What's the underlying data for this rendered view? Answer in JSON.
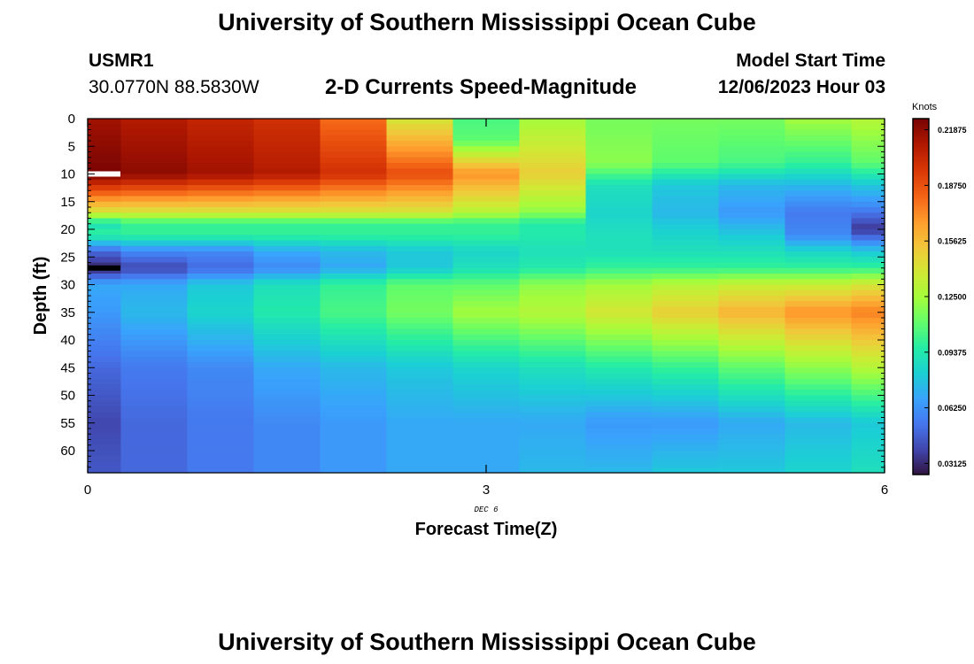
{
  "header": {
    "title": "University of Southern Mississippi Ocean Cube",
    "station": "USMR1",
    "coords": "30.0770N  88.5830W",
    "subtitle": "2-D Currents Speed-Magnitude",
    "model_label": "Model Start Time",
    "model_time": "12/06/2023 Hour 03"
  },
  "footer": {
    "title": "University of Southern Mississippi Ocean Cube"
  },
  "colors": {
    "palette": [
      "#30123b",
      "#4145ab",
      "#4675ed",
      "#39a2fc",
      "#1bcfd4",
      "#24eca6",
      "#61fc6c",
      "#a4fc3b",
      "#d1e834",
      "#f3c63a",
      "#fe9b2d",
      "#f36315",
      "#d93806",
      "#b11901",
      "#7a0403"
    ]
  },
  "chart_data": {
    "type": "heatmap",
    "title": "2-D Currents Speed-Magnitude",
    "xlabel": "Forecast Time(Z)",
    "ylabel": "Depth (ft)",
    "x_date_label": "DEC 6",
    "xlim": [
      0,
      6
    ],
    "ylim": [
      0,
      64
    ],
    "x_ticks": [
      0,
      3,
      6
    ],
    "y_ticks": [
      0,
      5,
      10,
      15,
      20,
      25,
      30,
      35,
      40,
      45,
      50,
      55,
      60
    ],
    "x": [
      0,
      0.5,
      1,
      1.5,
      2,
      2.5,
      3,
      3.5,
      4,
      4.5,
      5,
      5.5,
      6
    ],
    "colorbar": {
      "unit": "Knots",
      "min": 0.025,
      "max": 0.225,
      "tick_labels": [
        "0.21875",
        "0.18750",
        "0.15625",
        "0.12500",
        "0.09375",
        "0.06250",
        "0.03125"
      ]
    },
    "profiles": [
      {
        "depths": [
          0,
          10,
          17,
          19,
          21,
          24,
          27,
          30,
          35,
          45,
          55,
          64
        ],
        "values": [
          0.215,
          0.225,
          0.14,
          0.09,
          0.1,
          0.05,
          0.03,
          0.07,
          0.065,
          0.05,
          0.04,
          0.045
        ]
      },
      {
        "depths": [
          0,
          10,
          17,
          19,
          21,
          24,
          27,
          30,
          35,
          45,
          55,
          64
        ],
        "values": [
          0.21,
          0.22,
          0.14,
          0.1,
          0.1,
          0.06,
          0.04,
          0.07,
          0.075,
          0.055,
          0.05,
          0.05
        ]
      },
      {
        "depths": [
          0,
          10,
          17,
          19,
          21,
          24,
          27,
          30,
          35,
          45,
          55,
          64
        ],
        "values": [
          0.205,
          0.215,
          0.14,
          0.1,
          0.1,
          0.06,
          0.05,
          0.08,
          0.085,
          0.06,
          0.055,
          0.055
        ]
      },
      {
        "depths": [
          0,
          10,
          17,
          19,
          21,
          24,
          27,
          30,
          35,
          45,
          55,
          64
        ],
        "values": [
          0.2,
          0.21,
          0.14,
          0.1,
          0.1,
          0.07,
          0.06,
          0.09,
          0.095,
          0.07,
          0.06,
          0.06
        ]
      },
      {
        "depths": [
          0,
          10,
          17,
          19,
          21,
          24,
          27,
          30,
          35,
          45,
          55,
          64
        ],
        "values": [
          0.18,
          0.2,
          0.14,
          0.1,
          0.1,
          0.075,
          0.07,
          0.1,
          0.105,
          0.075,
          0.065,
          0.065
        ]
      },
      {
        "depths": [
          0,
          10,
          17,
          19,
          21,
          24,
          27,
          30,
          35,
          45,
          55,
          64
        ],
        "values": [
          0.14,
          0.19,
          0.14,
          0.1,
          0.1,
          0.08,
          0.08,
          0.11,
          0.115,
          0.08,
          0.07,
          0.07
        ]
      },
      {
        "depths": [
          0,
          4,
          10,
          17,
          19,
          21,
          24,
          27,
          30,
          35,
          45,
          55,
          64
        ],
        "values": [
          0.105,
          0.11,
          0.17,
          0.13,
          0.1,
          0.1,
          0.085,
          0.09,
          0.11,
          0.125,
          0.085,
          0.07,
          0.07
        ]
      },
      {
        "depths": [
          0,
          10,
          17,
          19,
          21,
          24,
          27,
          30,
          35,
          45,
          55,
          64
        ],
        "values": [
          0.125,
          0.15,
          0.12,
          0.095,
          0.095,
          0.09,
          0.095,
          0.12,
          0.13,
          0.09,
          0.07,
          0.075
        ]
      },
      {
        "depths": [
          0,
          8,
          12,
          17,
          21,
          24,
          27,
          30,
          35,
          45,
          55,
          64
        ],
        "values": [
          0.115,
          0.12,
          0.09,
          0.085,
          0.09,
          0.09,
          0.1,
          0.125,
          0.14,
          0.095,
          0.065,
          0.075
        ]
      },
      {
        "depths": [
          0,
          8,
          12,
          17,
          21,
          24,
          27,
          30,
          35,
          45,
          55,
          64
        ],
        "values": [
          0.115,
          0.11,
          0.08,
          0.075,
          0.085,
          0.09,
          0.1,
          0.13,
          0.15,
          0.1,
          0.065,
          0.08
        ]
      },
      {
        "depths": [
          0,
          8,
          12,
          17,
          21,
          24,
          27,
          30,
          35,
          45,
          55,
          64
        ],
        "values": [
          0.115,
          0.105,
          0.075,
          0.065,
          0.08,
          0.09,
          0.1,
          0.135,
          0.16,
          0.11,
          0.07,
          0.08
        ]
      },
      {
        "depths": [
          0,
          8,
          12,
          17,
          21,
          24,
          27,
          30,
          35,
          45,
          55,
          64
        ],
        "values": [
          0.125,
          0.1,
          0.075,
          0.055,
          0.06,
          0.085,
          0.1,
          0.135,
          0.17,
          0.12,
          0.075,
          0.085
        ]
      },
      {
        "depths": [
          0,
          8,
          12,
          16,
          20,
          24,
          27,
          30,
          35,
          45,
          55,
          64
        ],
        "values": [
          0.13,
          0.11,
          0.08,
          0.06,
          0.035,
          0.08,
          0.1,
          0.14,
          0.175,
          0.13,
          0.08,
          0.09
        ]
      }
    ],
    "line_markers": [
      {
        "x": 0,
        "depth": 10,
        "color": "white"
      },
      {
        "x": 0,
        "depth": 27,
        "color": "black"
      }
    ]
  }
}
